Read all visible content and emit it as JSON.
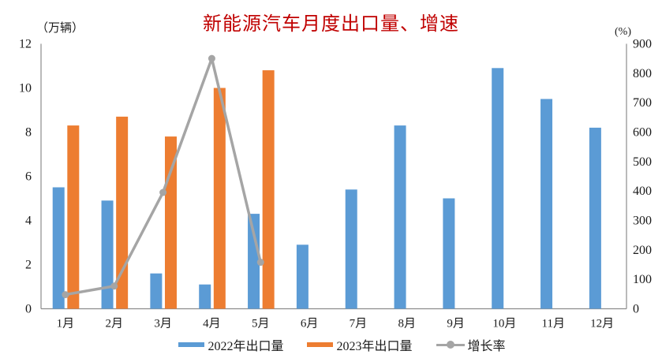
{
  "title": "新能源汽车月度出口量、增速",
  "colors": {
    "title": "#c00000",
    "bar_2022": "#5b9bd5",
    "bar_2023": "#ed7d31",
    "growth_line": "#a5a5a5",
    "axis_line": "#8c8c8c",
    "tick_text": "#1a1a1a"
  },
  "chart_data": {
    "type": "bar",
    "title": "新能源汽车月度出口量、增速",
    "categories": [
      "1月",
      "2月",
      "3月",
      "4月",
      "5月",
      "6月",
      "7月",
      "8月",
      "9月",
      "10月",
      "11月",
      "12月"
    ],
    "series": [
      {
        "name": "2022年出口量",
        "type": "bar",
        "axis": "left",
        "color": "#5b9bd5",
        "values": [
          5.5,
          4.9,
          1.6,
          1.1,
          4.3,
          2.9,
          5.4,
          8.3,
          5.0,
          10.9,
          9.5,
          8.2
        ]
      },
      {
        "name": "2023年出口量",
        "type": "bar",
        "axis": "left",
        "color": "#ed7d31",
        "values": [
          8.3,
          8.7,
          7.8,
          10.0,
          10.8,
          null,
          null,
          null,
          null,
          null,
          null,
          null
        ]
      },
      {
        "name": "增长率",
        "type": "line",
        "axis": "right",
        "color": "#a5a5a5",
        "values": [
          48,
          77,
          395,
          850,
          158,
          null,
          null,
          null,
          null,
          null,
          null,
          null
        ]
      }
    ],
    "left_axis": {
      "unit": "（万辆）",
      "min": 0,
      "max": 12,
      "step": 2,
      "ticks": [
        "0",
        "2",
        "4",
        "6",
        "8",
        "10",
        "12"
      ]
    },
    "right_axis": {
      "unit": "(%)",
      "min": 0,
      "max": 900,
      "step": 100,
      "ticks": [
        "0",
        "100",
        "200",
        "300",
        "400",
        "500",
        "600",
        "700",
        "800",
        "900"
      ]
    },
    "grid": false,
    "legend_position": "bottom"
  }
}
